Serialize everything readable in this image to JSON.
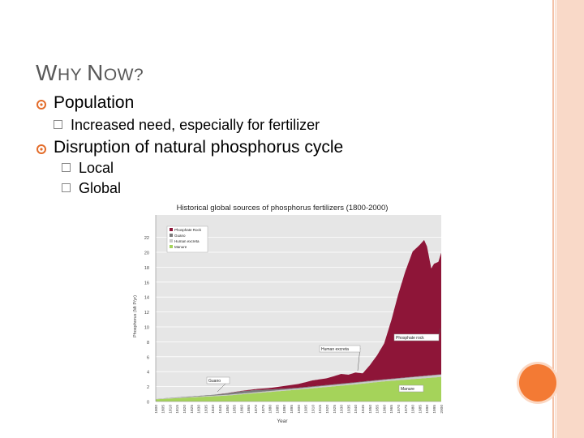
{
  "slide": {
    "title_w": "W",
    "title_hy": "HY ",
    "title_n": "N",
    "title_ow": "OW?",
    "bullets": [
      {
        "text": "Population",
        "subs": [
          "Increased need, especially for fertilizer"
        ]
      },
      {
        "text": "Disruption of natural phosphorus cycle",
        "subs": [
          "Local",
          "Global"
        ]
      }
    ],
    "colors": {
      "accent": "#e36c2a",
      "frame": "#f9d9c8",
      "dot": "#f37a34"
    }
  },
  "chart_data": {
    "type": "area",
    "title": "Historical global sources of phosphorus fertilizers (1800-2000)",
    "xlabel": "Year",
    "ylabel": "Phosphorus (Mt P/yr)",
    "ylim": [
      0,
      25
    ],
    "yticks": [
      0,
      2,
      4,
      6,
      8,
      10,
      12,
      14,
      16,
      18,
      20,
      22
    ],
    "xticks": [
      "1800",
      "1805",
      "1810",
      "1815",
      "1820",
      "1825",
      "1830",
      "1835",
      "1840",
      "1845",
      "1850",
      "1855",
      "1860",
      "1865",
      "1870",
      "1875",
      "1880",
      "1885",
      "1890",
      "1895",
      "1900",
      "1905",
      "1910",
      "1915",
      "1920",
      "1925",
      "1930",
      "1935",
      "1940",
      "1945",
      "1950",
      "1955",
      "1960",
      "1965",
      "1970",
      "1975",
      "1980",
      "1985",
      "1990",
      "1995",
      "2000"
    ],
    "xlim": [
      1800,
      2000
    ],
    "legend": [
      "Phosphate Rock",
      "Guano",
      "Human excreta",
      "Manure"
    ],
    "legend_position": "top-left",
    "annotations": [
      "Phosphate rock",
      "Human excreta",
      "Guano",
      "Manure"
    ],
    "series": [
      {
        "name": "Manure",
        "color": "#a5d35a",
        "x": [
          1800,
          1850,
          1900,
          1940,
          1960,
          1980,
          2000
        ],
        "values": [
          0.3,
          0.8,
          1.6,
          2.3,
          2.7,
          3.0,
          3.3
        ]
      },
      {
        "name": "Human excreta",
        "color": "#c9c9c9",
        "x": [
          1800,
          1850,
          1900,
          1940,
          1960,
          1980,
          2000
        ],
        "values": [
          0.05,
          0.1,
          0.15,
          0.2,
          0.2,
          0.25,
          0.3
        ]
      },
      {
        "name": "Guano",
        "color": "#7a7a7a",
        "x": [
          1800,
          1840,
          1850,
          1860,
          1870,
          1880,
          1900,
          2000
        ],
        "values": [
          0,
          0.1,
          0.2,
          0.3,
          0.3,
          0.2,
          0.1,
          0.05
        ]
      },
      {
        "name": "Phosphate Rock",
        "color": "#8e1538",
        "x": [
          1800,
          1840,
          1860,
          1880,
          1900,
          1910,
          1920,
          1930,
          1935,
          1940,
          1945,
          1950,
          1955,
          1960,
          1965,
          1970,
          1975,
          1980,
          1985,
          1988,
          1990,
          1993,
          1995,
          1998,
          2000
        ],
        "values": [
          0,
          0,
          0.05,
          0.2,
          0.5,
          0.8,
          0.9,
          1.3,
          1.1,
          1.3,
          1.1,
          2.1,
          3.3,
          4.8,
          7.8,
          11.3,
          14.3,
          16.8,
          17.6,
          18.2,
          17.3,
          14.3,
          14.9,
          15.1,
          16.3
        ]
      }
    ]
  }
}
